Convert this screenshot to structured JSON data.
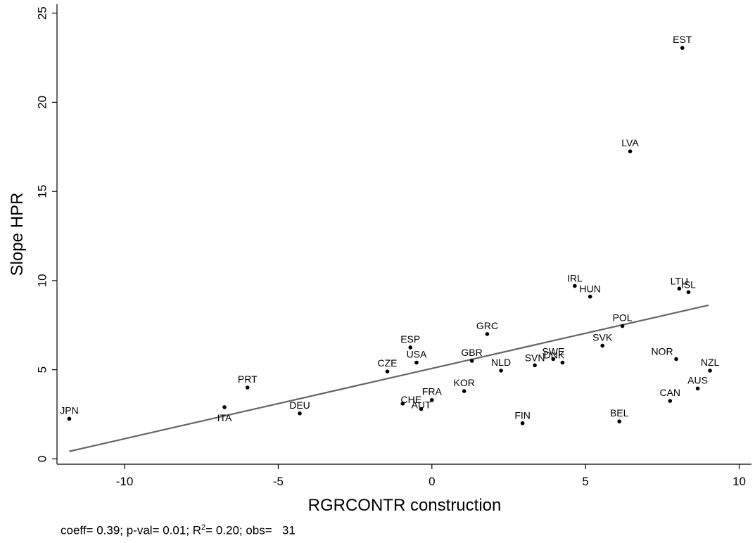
{
  "chart_data": {
    "type": "scatter",
    "xlabel": "RGRCONTR construction",
    "ylabel": "Slope HPR",
    "xlim": [
      -12.2,
      10.4
    ],
    "ylim": [
      -0.3,
      25.5
    ],
    "xticks": [
      -10,
      -5,
      0,
      5,
      10
    ],
    "yticks": [
      0,
      5,
      10,
      15,
      20,
      25
    ],
    "grid": false,
    "fit_line": {
      "x": [
        -11.8,
        9.0
      ],
      "y": [
        0.42,
        8.62
      ],
      "color": "#666666"
    },
    "points": [
      {
        "label": "JPN",
        "x": -11.8,
        "y": 2.25
      },
      {
        "label": "ITA",
        "x": -6.75,
        "y": 2.9
      },
      {
        "label": "PRT",
        "x": -6.0,
        "y": 4.0
      },
      {
        "label": "DEU",
        "x": -4.3,
        "y": 2.55
      },
      {
        "label": "CZE",
        "x": -1.45,
        "y": 4.9
      },
      {
        "label": "ESP",
        "x": -0.7,
        "y": 6.25
      },
      {
        "label": "USA",
        "x": -0.5,
        "y": 5.4
      },
      {
        "label": "CHE",
        "x": -0.95,
        "y": 3.1
      },
      {
        "label": "AUT",
        "x": -0.35,
        "y": 2.8
      },
      {
        "label": "FRA",
        "x": 0.0,
        "y": 3.3
      },
      {
        "label": "KOR",
        "x": 1.05,
        "y": 3.8
      },
      {
        "label": "GBR",
        "x": 1.3,
        "y": 5.5
      },
      {
        "label": "GRC",
        "x": 1.8,
        "y": 7.0
      },
      {
        "label": "NLD",
        "x": 2.25,
        "y": 4.95
      },
      {
        "label": "FIN",
        "x": 2.95,
        "y": 2.0
      },
      {
        "label": "SVN",
        "x": 3.35,
        "y": 5.25
      },
      {
        "label": "SWE",
        "x": 3.95,
        "y": 5.6
      },
      {
        "label": "DNK",
        "x": 4.25,
        "y": 5.4
      },
      {
        "label": "IRL",
        "x": 4.65,
        "y": 9.7
      },
      {
        "label": "HUN",
        "x": 5.15,
        "y": 9.1
      },
      {
        "label": "SVK",
        "x": 5.55,
        "y": 6.35
      },
      {
        "label": "BEL",
        "x": 6.1,
        "y": 2.1
      },
      {
        "label": "POL",
        "x": 6.2,
        "y": 7.45
      },
      {
        "label": "LVA",
        "x": 6.45,
        "y": 17.25
      },
      {
        "label": "CAN",
        "x": 7.75,
        "y": 3.25
      },
      {
        "label": "NOR",
        "x": 7.95,
        "y": 5.6
      },
      {
        "label": "LTU",
        "x": 8.05,
        "y": 9.55
      },
      {
        "label": "EST",
        "x": 8.15,
        "y": 23.05
      },
      {
        "label": "ISL",
        "x": 8.35,
        "y": 9.35
      },
      {
        "label": "AUS",
        "x": 8.65,
        "y": 3.95
      },
      {
        "label": "NZL",
        "x": 9.05,
        "y": 4.95
      }
    ]
  },
  "footer": {
    "prefix": "coeff= 0.39; p-val= 0.01; R",
    "sup": "2",
    "suffix": "= 0.20; obs=   31"
  }
}
